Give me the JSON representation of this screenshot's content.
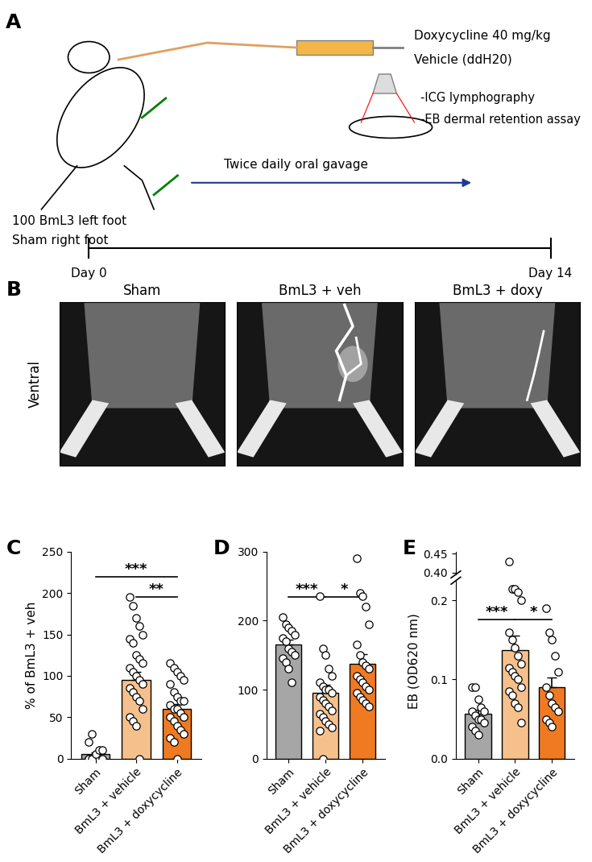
{
  "panel_labels": [
    "A",
    "B",
    "C",
    "D",
    "E"
  ],
  "schematic": {
    "injection": [
      "Doxycycline 40 mg/kg",
      "Vehicle (ddH20)"
    ],
    "feet": [
      "100 BmL3 left foot",
      "Sham right foot"
    ],
    "treatment": "Twice daily oral gavage",
    "readouts": [
      "-ICG lymphography",
      "-EB dermal retention assay"
    ],
    "timeline": [
      "Day 0",
      "Day 14"
    ]
  },
  "images": {
    "view": "Ventral",
    "titles": [
      "Sham",
      "BmL3 + veh",
      "BmL3 + doxy"
    ]
  },
  "chart_data": [
    {
      "type": "bar",
      "categories": [
        "Sham",
        "BmL3 + vehicle",
        "BmL3 + doxycycline"
      ],
      "values": [
        5,
        95,
        60
      ],
      "errors": [
        2.5,
        10,
        6
      ],
      "points": [
        [
          0,
          0,
          0,
          0,
          0,
          0,
          0,
          5,
          10,
          10,
          20,
          30
        ],
        [
          195,
          185,
          170,
          160,
          150,
          145,
          140,
          125,
          120,
          115,
          110,
          105,
          100,
          95,
          90,
          85,
          80,
          75,
          70,
          60,
          50,
          45,
          40,
          0
        ],
        [
          115,
          110,
          105,
          100,
          95,
          90,
          80,
          75,
          70,
          70,
          65,
          60,
          60,
          55,
          50,
          50,
          45,
          40,
          35,
          30,
          25,
          20,
          0
        ]
      ],
      "colors": [
        "#a6a6a6",
        "#f6c08c",
        "#f07a22"
      ],
      "ylabel": "% of BmL3 + veh",
      "ylim": [
        0,
        250
      ],
      "yticks": [
        0,
        50,
        100,
        150,
        200,
        250
      ],
      "significance": [
        {
          "between": [
            "Sham",
            "BmL3 + doxycycline"
          ],
          "label": "***"
        },
        {
          "between": [
            "BmL3 + vehicle",
            "BmL3 + doxycycline"
          ],
          "label": "**"
        }
      ]
    },
    {
      "type": "bar",
      "categories": [
        "Sham",
        "BmL3 + vehicle",
        "BmL3 + doxycycline"
      ],
      "values": [
        165,
        95,
        137
      ],
      "errors": [
        8,
        12,
        14
      ],
      "points": [
        [
          205,
          195,
          190,
          185,
          180,
          175,
          170,
          160,
          155,
          150,
          145,
          140,
          130,
          110
        ],
        [
          235,
          160,
          150,
          130,
          120,
          110,
          105,
          100,
          100,
          95,
          90,
          85,
          80,
          75,
          70,
          65,
          60,
          55,
          50,
          45,
          40,
          0
        ],
        [
          290,
          240,
          235,
          220,
          195,
          165,
          150,
          140,
          135,
          130,
          120,
          115,
          110,
          105,
          100,
          95,
          90,
          85,
          80,
          75
        ]
      ],
      "colors": [
        "#a6a6a6",
        "#f6c08c",
        "#f07a22"
      ],
      "ylim": [
        0,
        300
      ],
      "yticks": [
        0,
        100,
        200,
        300
      ],
      "significance": [
        {
          "between": [
            "Sham",
            "BmL3 + vehicle"
          ],
          "label": "***"
        },
        {
          "between": [
            "BmL3 + vehicle",
            "BmL3 + doxycycline"
          ],
          "label": "*"
        }
      ]
    },
    {
      "type": "bar",
      "categories": [
        "Sham",
        "BmL3 + vehicle",
        "BmL3 + doxycycline"
      ],
      "values": [
        0.057,
        0.137,
        0.09
      ],
      "errors": [
        0.005,
        0.018,
        0.013
      ],
      "points": [
        [
          0.09,
          0.09,
          0.075,
          0.065,
          0.06,
          0.06,
          0.055,
          0.05,
          0.05,
          0.045,
          0.04,
          0.035,
          0.03
        ],
        [
          0.43,
          0.215,
          0.215,
          0.21,
          0.2,
          0.16,
          0.15,
          0.14,
          0.13,
          0.12,
          0.115,
          0.11,
          0.105,
          0.1,
          0.09,
          0.085,
          0.08,
          0.07,
          0.065,
          0.045
        ],
        [
          0.19,
          0.16,
          0.15,
          0.13,
          0.11,
          0.09,
          0.08,
          0.07,
          0.065,
          0.06,
          0.05,
          0.045,
          0.04
        ]
      ],
      "colors": [
        "#a6a6a6",
        "#f6c08c",
        "#f07a22"
      ],
      "ylabel": "EB (OD620 nm)",
      "ylim": [
        0,
        0.225
      ],
      "yticks": [
        {
          "value": 0,
          "label": "0.0"
        },
        0.1,
        0.2
      ],
      "y_break": {
        "ylim": [
          0.395,
          0.455
        ],
        "yticks": [
          {
            "value": 0.4,
            "label": "0.40"
          },
          0.45
        ]
      },
      "significance": [
        {
          "between": [
            "Sham",
            "BmL3 + vehicle"
          ],
          "label": "***"
        },
        {
          "between": [
            "BmL3 + vehicle",
            "BmL3 + doxycycline"
          ],
          "label": "*"
        }
      ]
    }
  ]
}
